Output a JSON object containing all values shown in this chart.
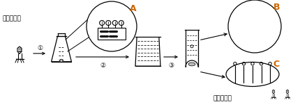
{
  "bg_color": "#ffffff",
  "line_color": "#000000",
  "orange": "#cc6600",
  "text_qindai": "亲代噬菌体",
  "text_zidai": "子代噬菌体",
  "label_A": "A",
  "label_B": "B",
  "label_C": "C",
  "step1": "①",
  "step2": "②",
  "step3": "③",
  "fig_width": 4.3,
  "fig_height": 1.57,
  "dpi": 100
}
